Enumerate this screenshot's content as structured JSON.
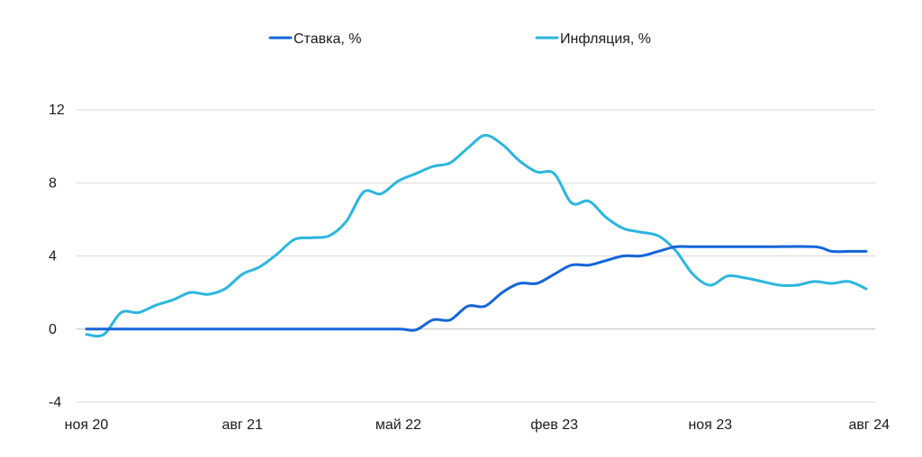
{
  "chart_data": {
    "type": "line",
    "title": "",
    "xlabel": "",
    "ylabel": "",
    "ylim": [
      -4,
      12
    ],
    "y_ticks": [
      "12",
      "8",
      "4",
      "0",
      "-4"
    ],
    "y_tick_values": [
      12,
      8,
      4,
      0,
      -4
    ],
    "x_tick_labels": [
      "ноя 20",
      "авг 21",
      "май 22",
      "фев 23",
      "ноя 23",
      "авг 24"
    ],
    "x_tick_dates": [
      "2020-11",
      "2021-08",
      "2022-05",
      "2023-02",
      "2023-11",
      "2024-08"
    ],
    "grid": "horizontal",
    "legend_position": "top-center",
    "series": [
      {
        "name": "Ставка, %",
        "color": "#1465d8",
        "points": [
          [
            "2020-11",
            0.0
          ],
          [
            "2021-02",
            0.0
          ],
          [
            "2021-05",
            0.0
          ],
          [
            "2021-08",
            0.0
          ],
          [
            "2021-11",
            0.0
          ],
          [
            "2022-02",
            0.0
          ],
          [
            "2022-05",
            0.0
          ],
          [
            "2022-06",
            -0.05
          ],
          [
            "2022-07",
            0.5
          ],
          [
            "2022-08",
            0.5
          ],
          [
            "2022-09",
            1.25
          ],
          [
            "2022-10",
            1.25
          ],
          [
            "2022-11",
            2.0
          ],
          [
            "2022-12",
            2.5
          ],
          [
            "2023-01",
            2.5
          ],
          [
            "2023-02",
            3.0
          ],
          [
            "2023-03",
            3.5
          ],
          [
            "2023-04",
            3.5
          ],
          [
            "2023-05",
            3.75
          ],
          [
            "2023-06",
            4.0
          ],
          [
            "2023-07",
            4.0
          ],
          [
            "2023-08",
            4.25
          ],
          [
            "2023-09",
            4.5
          ],
          [
            "2023-10",
            4.5
          ],
          [
            "2023-11",
            4.5
          ],
          [
            "2024-02",
            4.5
          ],
          [
            "2024-05",
            4.5
          ],
          [
            "2024-06",
            4.25
          ],
          [
            "2024-07",
            4.25
          ],
          [
            "2024-08",
            4.25
          ]
        ]
      },
      {
        "name": "Инфляция, %",
        "color": "#2bb6de",
        "points": [
          [
            "2020-11",
            -0.3
          ],
          [
            "2020-12",
            -0.3
          ],
          [
            "2021-01",
            0.9
          ],
          [
            "2021-02",
            0.9
          ],
          [
            "2021-03",
            1.3
          ],
          [
            "2021-04",
            1.6
          ],
          [
            "2021-05",
            2.0
          ],
          [
            "2021-06",
            1.9
          ],
          [
            "2021-07",
            2.2
          ],
          [
            "2021-08",
            3.0
          ],
          [
            "2021-09",
            3.4
          ],
          [
            "2021-10",
            4.1
          ],
          [
            "2021-11",
            4.9
          ],
          [
            "2021-12",
            5.0
          ],
          [
            "2022-01",
            5.1
          ],
          [
            "2022-02",
            5.9
          ],
          [
            "2022-03",
            7.5
          ],
          [
            "2022-04",
            7.4
          ],
          [
            "2022-05",
            8.1
          ],
          [
            "2022-06",
            8.5
          ],
          [
            "2022-07",
            8.9
          ],
          [
            "2022-08",
            9.1
          ],
          [
            "2022-09",
            9.9
          ],
          [
            "2022-10",
            10.6
          ],
          [
            "2022-11",
            10.1
          ],
          [
            "2022-12",
            9.2
          ],
          [
            "2023-01",
            8.6
          ],
          [
            "2023-02",
            8.5
          ],
          [
            "2023-03",
            6.9
          ],
          [
            "2023-04",
            7.0
          ],
          [
            "2023-05",
            6.1
          ],
          [
            "2023-06",
            5.5
          ],
          [
            "2023-07",
            5.3
          ],
          [
            "2023-08",
            5.1
          ],
          [
            "2023-09",
            4.3
          ],
          [
            "2023-10",
            3.0
          ],
          [
            "2023-11",
            2.4
          ],
          [
            "2023-12",
            2.9
          ],
          [
            "2024-01",
            2.8
          ],
          [
            "2024-02",
            2.6
          ],
          [
            "2024-03",
            2.4
          ],
          [
            "2024-04",
            2.4
          ],
          [
            "2024-05",
            2.6
          ],
          [
            "2024-06",
            2.5
          ],
          [
            "2024-07",
            2.6
          ],
          [
            "2024-08",
            2.2
          ]
        ]
      }
    ]
  }
}
